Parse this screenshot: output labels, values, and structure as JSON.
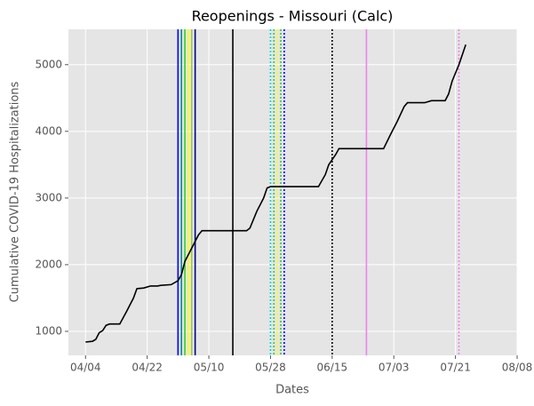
{
  "chart_data": {
    "type": "line",
    "title": "Reopenings - Missouri (Calc)",
    "xlabel": "Dates",
    "ylabel": "Cumulative COVID-19 Hospitalizations",
    "x": [
      "04/04",
      "04/06",
      "04/07",
      "04/08",
      "04/09",
      "04/10",
      "04/11",
      "04/14",
      "04/16",
      "04/18",
      "04/19",
      "04/21",
      "04/23",
      "04/25",
      "04/26",
      "04/29",
      "05/01",
      "05/02",
      "05/03",
      "05/05",
      "05/07",
      "05/08",
      "05/21",
      "05/22",
      "05/24",
      "05/26",
      "05/27",
      "05/28",
      "06/11",
      "06/13",
      "06/14",
      "06/16",
      "06/17",
      "06/30",
      "07/02",
      "07/04",
      "07/06",
      "07/07",
      "07/12",
      "07/14",
      "07/18",
      "07/19",
      "07/20",
      "07/22",
      "07/24"
    ],
    "values": [
      840,
      850,
      880,
      980,
      1010,
      1090,
      1110,
      1110,
      1300,
      1500,
      1640,
      1650,
      1680,
      1680,
      1690,
      1700,
      1760,
      1850,
      2050,
      2250,
      2450,
      2510,
      2510,
      2550,
      2800,
      3000,
      3150,
      3170,
      3170,
      3350,
      3500,
      3650,
      3740,
      3740,
      3950,
      4150,
      4370,
      4430,
      4430,
      4460,
      4460,
      4560,
      4750,
      5000,
      5300
    ],
    "color": "#000000",
    "vlines": [
      {
        "x": "05/01",
        "color": "#0000ff",
        "style": "solid"
      },
      {
        "x": "05/02",
        "color": "#008b8b",
        "style": "solid"
      },
      {
        "x": "05/03",
        "color": "#32cd32",
        "style": "solid"
      },
      {
        "x": "05/04",
        "color": "#ffff00",
        "style": "solid"
      },
      {
        "x": "05/05",
        "color": "#9acd32",
        "style": "solid"
      },
      {
        "x": "05/06",
        "color": "#00008b",
        "style": "solid"
      },
      {
        "x": "05/17",
        "color": "#000000",
        "style": "solid"
      },
      {
        "x": "05/28",
        "color": "#00ced1",
        "style": "dotted"
      },
      {
        "x": "05/29",
        "color": "#32cd32",
        "style": "dotted"
      },
      {
        "x": "05/30",
        "color": "#ffff00",
        "style": "dotted"
      },
      {
        "x": "05/31",
        "color": "#32cd32",
        "style": "dotted"
      },
      {
        "x": "06/01",
        "color": "#0000ff",
        "style": "dotted"
      },
      {
        "x": "06/15",
        "color": "#000000",
        "style": "dotted"
      },
      {
        "x": "06/25",
        "color": "#ee82ee",
        "style": "solid"
      },
      {
        "x": "07/22",
        "color": "#ee82ee",
        "style": "dotted"
      }
    ],
    "xlim": [
      "03/30",
      "08/08"
    ],
    "xticks": [
      "04/04",
      "04/22",
      "05/10",
      "05/28",
      "06/15",
      "07/03",
      "07/21",
      "08/08"
    ],
    "ylim": [
      640,
      5530
    ],
    "yticks": [
      1000,
      2000,
      3000,
      4000,
      5000
    ],
    "grid": true
  }
}
